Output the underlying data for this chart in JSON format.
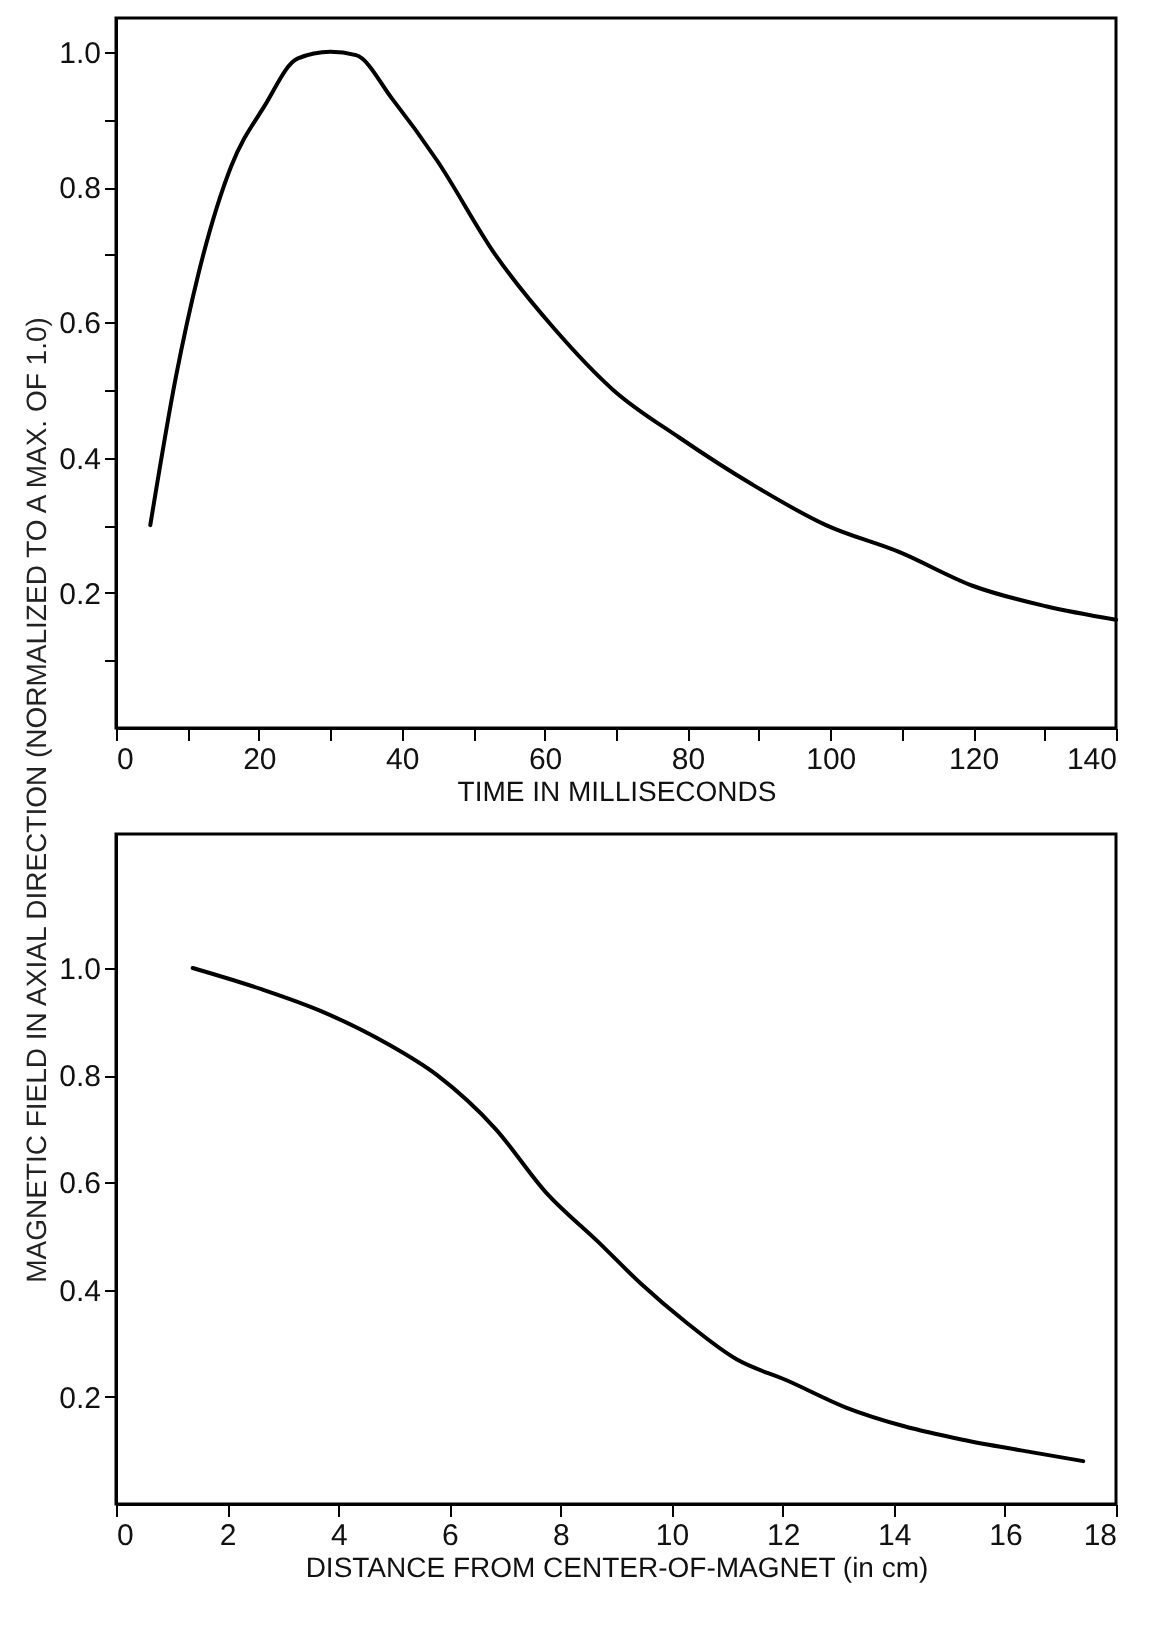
{
  "chart_data": [
    {
      "type": "line",
      "xlabel": "TIME IN MILLISECONDS",
      "ylabel": "MAGNETIC FIELD IN AXIAL DIRECTION (NORMALIZED TO A MAX. OF 1.0)",
      "x": [
        4.8,
        8.4,
        11.5,
        16.1,
        20.8,
        25.4,
        30,
        33.6,
        38.7,
        44.9,
        53.1,
        61.4,
        69.6,
        78.8,
        89.1,
        99.4,
        109.7,
        120,
        130.2,
        140
      ],
      "series": [
        {
          "color": "#000000",
          "values": [
            0.3,
            0.52,
            0.67,
            0.83,
            0.92,
            0.99,
            1.0,
            0.995,
            0.93,
            0.84,
            0.7,
            0.59,
            0.5,
            0.43,
            0.36,
            0.3,
            0.26,
            0.21,
            0.18,
            0.16
          ]
        }
      ],
      "xlim": [
        0,
        140
      ],
      "xticks": [
        0,
        {
          "value": 10,
          "label": null
        },
        20,
        {
          "value": 30,
          "label": null
        },
        40,
        {
          "value": 50,
          "label": null
        },
        60,
        {
          "value": 70,
          "label": null
        },
        80,
        {
          "value": 90,
          "label": null
        },
        100,
        {
          "value": 110,
          "label": null
        },
        120,
        {
          "value": 130,
          "label": null
        },
        140
      ],
      "ylim": [
        0,
        1.05
      ],
      "yticks": [
        {
          "value": 0.1,
          "label": null
        },
        0.2,
        {
          "value": 0.3,
          "label": null
        },
        0.4,
        {
          "value": 0.5,
          "label": null
        },
        0.6,
        {
          "value": 0.7,
          "label": null
        },
        0.8,
        {
          "value": 0.9,
          "label": null
        },
        {
          "value": 1,
          "label": "1.0"
        }
      ],
      "grid": false,
      "marker": "none",
      "line_style": "solid"
    },
    {
      "type": "line",
      "xlabel": "DISTANCE FROM CENTER-OF-MAGNET (in cm)",
      "x": [
        1.38,
        2.63,
        3.68,
        4.86,
        5.78,
        6.83,
        7.75,
        8.67,
        9.46,
        10.25,
        11.17,
        12.09,
        13.14,
        14.19,
        15.24,
        16.29,
        17.41
      ],
      "series": [
        {
          "color": "#000000",
          "values": [
            1.0,
            0.96,
            0.92,
            0.86,
            0.8,
            0.7,
            0.58,
            0.49,
            0.41,
            0.34,
            0.27,
            0.23,
            0.18,
            0.145,
            0.12,
            0.1,
            0.08
          ]
        }
      ],
      "xlim": [
        0,
        18
      ],
      "xticks": [
        0,
        2,
        4,
        6,
        8,
        10,
        12,
        14,
        16,
        18
      ],
      "ylim": [
        0,
        1.25
      ],
      "yticks": [
        0.2,
        0.4,
        0.6,
        0.8,
        {
          "value": 1,
          "label": "1.0"
        }
      ],
      "grid": false,
      "marker": "none",
      "line_style": "solid"
    }
  ]
}
